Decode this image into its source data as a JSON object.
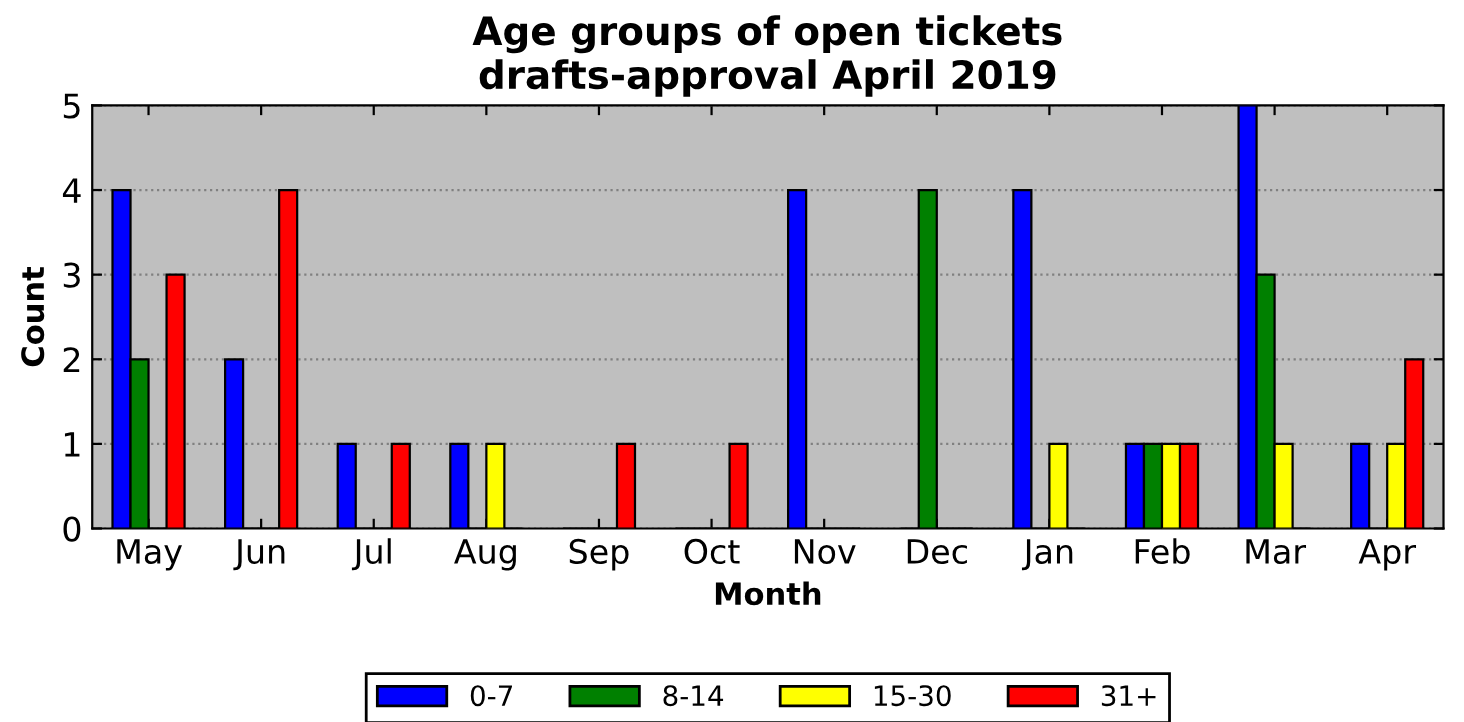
{
  "chart_data": {
    "type": "bar",
    "title": "Age groups of open tickets\ndrafts-approval April 2019",
    "xlabel": "Month",
    "ylabel": "Count",
    "categories": [
      "May",
      "Jun",
      "Jul",
      "Aug",
      "Sep",
      "Oct",
      "Nov",
      "Dec",
      "Jan",
      "Feb",
      "Mar",
      "Apr"
    ],
    "series": [
      {
        "name": "0-7",
        "color": "#0000ff",
        "values": [
          4,
          2,
          1,
          1,
          0,
          0,
          4,
          0,
          4,
          1,
          5,
          1
        ]
      },
      {
        "name": "8-14",
        "color": "#008000",
        "values": [
          2,
          0,
          0,
          0,
          0,
          0,
          0,
          4,
          0,
          1,
          3,
          0
        ]
      },
      {
        "name": "15-30",
        "color": "#ffff00",
        "values": [
          0,
          0,
          0,
          1,
          0,
          0,
          0,
          0,
          1,
          1,
          1,
          1
        ]
      },
      {
        "name": "31+",
        "color": "#ff0000",
        "values": [
          3,
          4,
          1,
          0,
          1,
          1,
          0,
          0,
          0,
          1,
          0,
          2
        ]
      }
    ],
    "ylim": [
      0,
      5
    ],
    "yticks": [
      0,
      1,
      2,
      3,
      4,
      5
    ],
    "grid": "y",
    "legend": "bottom"
  }
}
